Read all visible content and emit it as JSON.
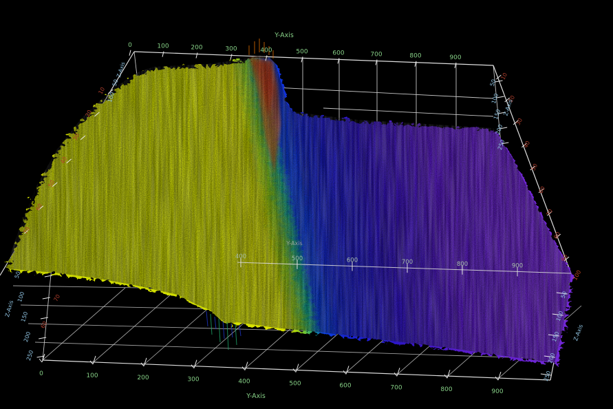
{
  "chart_data": {
    "type": "heatmap",
    "projection": "3d_surface_plot",
    "background": "#000000",
    "wireframe_color": "#ebebeb",
    "axes": {
      "y_top": {
        "label": "Y-Axis",
        "color": "#86cf86",
        "ticks": [
          "0",
          "100",
          "200",
          "300",
          "400",
          "500",
          "600",
          "700",
          "800",
          "900"
        ]
      },
      "y_bottom": {
        "label": "Y-Axis",
        "color": "#86cf86",
        "ticks": [
          "0",
          "100",
          "200",
          "300",
          "400",
          "500",
          "600",
          "700",
          "800",
          "900"
        ]
      },
      "y_mid": {
        "label": "Y-Axis",
        "color": "#a7bfa7",
        "ticks": [
          "400",
          "500",
          "600",
          "700",
          "800",
          "900"
        ]
      },
      "z_front_left": {
        "label": "Z-Axis",
        "color": "#8fc2e0",
        "ticks": [
          "50",
          "100",
          "150",
          "200",
          "250"
        ]
      },
      "z_back_left": {
        "label": "Z-Axis",
        "color": "#8fc2e0",
        "ticks": [
          "50",
          "100"
        ]
      },
      "z_back_right": {
        "label": "Z-Axis",
        "color": "#8fc2e0",
        "ticks": [
          "50",
          "100",
          "150",
          "200",
          "250"
        ]
      },
      "z_front_right": {
        "label": "Z-Axis",
        "color": "#8fc2e0",
        "ticks": [
          "50",
          "100",
          "150",
          "200",
          "250"
        ]
      },
      "x_left": {
        "color": "#b2402e",
        "ticks": [
          "10",
          "20",
          "30",
          "40",
          "50",
          "60",
          "70"
        ]
      },
      "x_right": {
        "color": "#b2402e",
        "ticks": [
          "10",
          "20",
          "30",
          "40",
          "50",
          "60",
          "70",
          "80",
          "90"
        ],
        "origin_tick": "100"
      },
      "x_wall_left": {
        "color": "#b2402e",
        "ticks": [
          "70",
          "60"
        ]
      }
    },
    "surface": {
      "description": "Height-colored noisy surface: high yellow plateau (y≈0-390), sharp ridge crest with orange-red top at y≈390-430 dropping through green/cyan to a deep blue valley (y≈430-560), then broad flat violet plain (y≈560-960). Dense speckle noise and vertical scan streaks across the whole surface.",
      "color_scale": [
        {
          "level": "high",
          "color": "#d8e600"
        },
        {
          "level": "ridge-top",
          "color": "#e05500"
        },
        {
          "level": "upper-mid",
          "color": "#7ac728"
        },
        {
          "level": "mid",
          "color": "#14a58c"
        },
        {
          "level": "low-mid",
          "color": "#1822d2"
        },
        {
          "level": "low",
          "color": "#7a2ad8"
        }
      ],
      "regions": [
        {
          "name": "plateau",
          "y_range": [
            0,
            390
          ],
          "relative_height": 230,
          "color": "yellow"
        },
        {
          "name": "ridge",
          "y_range": [
            390,
            430
          ],
          "relative_height": 250,
          "color": "orange-red crest"
        },
        {
          "name": "valley",
          "y_range": [
            430,
            560
          ],
          "relative_height": 60,
          "color": "deep blue"
        },
        {
          "name": "plain",
          "y_range": [
            560,
            960
          ],
          "relative_height": 40,
          "color": "violet"
        }
      ]
    }
  }
}
